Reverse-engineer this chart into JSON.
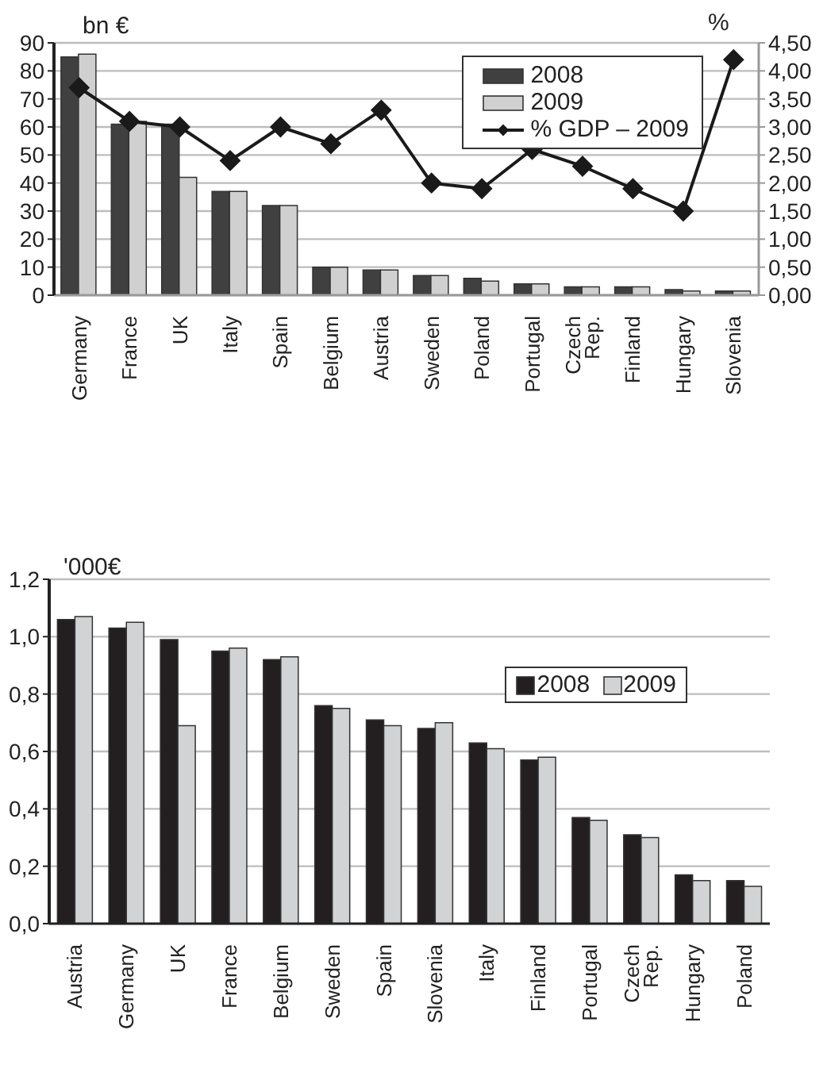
{
  "chart_data": [
    {
      "type": "bar",
      "ylabel": "bn €",
      "y2label": "%",
      "categories": [
        "Germany",
        "France",
        "UK",
        "Italy",
        "Spain",
        "Belgium",
        "Austria",
        "Sweden",
        "Poland",
        "Portugal",
        "Czech Rep.",
        "Finland",
        "Hungary",
        "Slovenia"
      ],
      "series": [
        {
          "name": "2008",
          "color": "#404040",
          "values": [
            85,
            61,
            61,
            37,
            32,
            10,
            9,
            7,
            6,
            4,
            3,
            3,
            2,
            1.5
          ]
        },
        {
          "name": "2009",
          "color": "#d0d0d0",
          "values": [
            86,
            62,
            42,
            37,
            32,
            10,
            9,
            7,
            5,
            4,
            3,
            3,
            1.5,
            1.5
          ]
        },
        {
          "name": "% GDP – 2009",
          "type": "line",
          "axis": "y2",
          "color": "#1a1a1a",
          "marker": "diamond",
          "values": [
            3.7,
            3.1,
            3.0,
            2.4,
            3.0,
            2.7,
            3.3,
            2.0,
            1.9,
            2.6,
            2.3,
            1.9,
            1.5,
            4.2
          ]
        }
      ],
      "ylim": [
        0,
        90
      ],
      "yticks": [
        0,
        10,
        20,
        30,
        40,
        50,
        60,
        70,
        80,
        90
      ],
      "y2lim": [
        0,
        4.5
      ],
      "y2ticks": [
        {
          "value": 0,
          "label": "0,00"
        },
        {
          "value": 0.5,
          "label": "0,50"
        },
        {
          "value": 1,
          "label": "1,00"
        },
        {
          "value": 1.5,
          "label": "1,50"
        },
        {
          "value": 2,
          "label": "2,00"
        },
        {
          "value": 2.5,
          "label": "2,50"
        },
        {
          "value": 3,
          "label": "3,00"
        },
        {
          "value": 3.5,
          "label": "3,50"
        },
        {
          "value": 4,
          "label": "4,00"
        },
        {
          "value": 4.5,
          "label": "4,50"
        }
      ],
      "grid": "y",
      "legend": "top right"
    },
    {
      "type": "bar",
      "ylabel": "'000€",
      "categories": [
        "Austria",
        "Germany",
        "UK",
        "France",
        "Belgium",
        "Sweden",
        "Spain",
        "Slovenia",
        "Italy",
        "Finland",
        "Portugal",
        "Czech Rep.",
        "Hungary",
        "Poland"
      ],
      "series": [
        {
          "name": "2008",
          "color": "#231f20",
          "values": [
            1.06,
            1.03,
            0.99,
            0.95,
            0.92,
            0.76,
            0.71,
            0.68,
            0.63,
            0.57,
            0.37,
            0.31,
            0.17,
            0.15
          ]
        },
        {
          "name": "2009",
          "color": "#d1d3d4",
          "values": [
            1.07,
            1.05,
            0.69,
            0.96,
            0.93,
            0.75,
            0.69,
            0.7,
            0.61,
            0.58,
            0.36,
            0.3,
            0.15,
            0.13
          ]
        }
      ],
      "ylim": [
        0,
        1.2
      ],
      "yticks": [
        {
          "value": 0,
          "label": "0,0"
        },
        {
          "value": 0.2,
          "label": "0,2"
        },
        {
          "value": 0.4,
          "label": "0,4"
        },
        {
          "value": 0.6,
          "label": "0,6"
        },
        {
          "value": 0.8,
          "label": "0,8"
        },
        {
          "value": 1,
          "label": "1,0"
        },
        {
          "value": 1.2,
          "label": "1,2"
        }
      ],
      "grid": "y",
      "legend": "top right"
    }
  ]
}
